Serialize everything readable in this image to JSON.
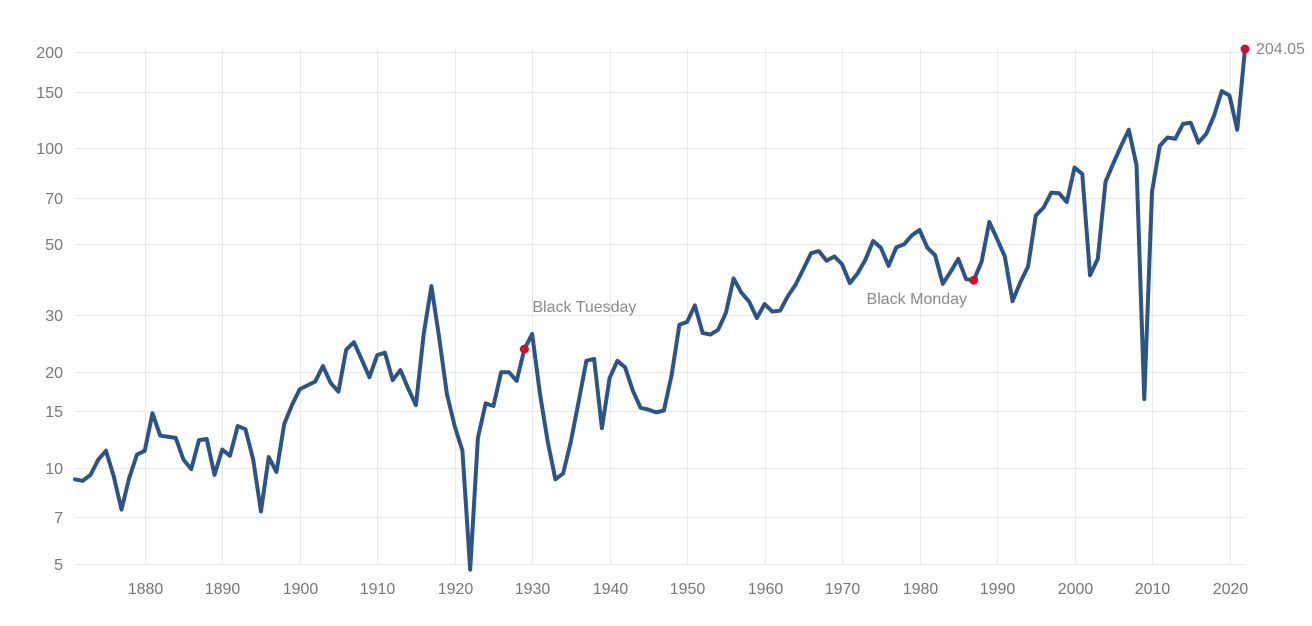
{
  "chart_data": {
    "type": "line",
    "title": "",
    "xlabel": "",
    "ylabel": "",
    "scale": "log",
    "grid": true,
    "legend": "none",
    "xlim": [
      1871,
      2022
    ],
    "ylim": [
      5,
      204.05
    ],
    "x_ticks": [
      1880,
      1890,
      1900,
      1910,
      1920,
      1930,
      1940,
      1950,
      1960,
      1970,
      1980,
      1990,
      2000,
      2010,
      2020
    ],
    "y_ticks": [
      5,
      7,
      10,
      15,
      20,
      30,
      50,
      70,
      100,
      150,
      200
    ],
    "line_color": "#2d5486",
    "marker_color": "#d20f2f",
    "series": [
      {
        "x": [
          1871,
          1872,
          1873,
          1874,
          1875,
          1876,
          1877,
          1878,
          1879,
          1880,
          1881,
          1882,
          1883,
          1884,
          1885,
          1886,
          1887,
          1888,
          1889,
          1890,
          1891,
          1892,
          1893,
          1894,
          1895,
          1896,
          1897,
          1898,
          1899,
          1900,
          1901,
          1902,
          1903,
          1904,
          1905,
          1906,
          1907,
          1908,
          1909,
          1910,
          1911,
          1912,
          1913,
          1914,
          1915,
          1916,
          1917,
          1918,
          1919,
          1920,
          1921,
          1922,
          1923,
          1924,
          1925,
          1926,
          1927,
          1928,
          1929,
          1930,
          1931,
          1932,
          1933,
          1934,
          1935,
          1936,
          1937,
          1938,
          1939,
          1940,
          1941,
          1942,
          1943,
          1944,
          1945,
          1946,
          1947,
          1948,
          1949,
          1950,
          1951,
          1952,
          1953,
          1954,
          1955,
          1956,
          1957,
          1958,
          1959,
          1960,
          1961,
          1962,
          1963,
          1964,
          1965,
          1966,
          1967,
          1968,
          1969,
          1970,
          1971,
          1972,
          1973,
          1974,
          1975,
          1976,
          1977,
          1978,
          1979,
          1980,
          1981,
          1982,
          1983,
          1984,
          1985,
          1986,
          1987,
          1988,
          1989,
          1990,
          1991,
          1992,
          1993,
          1994,
          1995,
          1996,
          1997,
          1998,
          1999,
          2000,
          2001,
          2002,
          2003,
          2004,
          2005,
          2006,
          2007,
          2008,
          2009,
          2010,
          2011,
          2012,
          2013,
          2014,
          2015,
          2016,
          2017,
          2018,
          2019,
          2020,
          2021,
          2022
        ],
        "y": [
          9.2,
          9.1,
          9.5,
          10.6,
          11.3,
          9.4,
          7.4,
          9.3,
          11.0,
          11.3,
          14.8,
          12.6,
          12.5,
          12.4,
          10.6,
          9.9,
          12.2,
          12.3,
          9.5,
          11.4,
          10.9,
          13.5,
          13.2,
          10.6,
          7.3,
          10.8,
          9.7,
          13.7,
          15.7,
          17.6,
          18.1,
          18.6,
          20.8,
          18.4,
          17.3,
          23.4,
          24.7,
          21.8,
          19.2,
          22.5,
          22.9,
          18.8,
          20.2,
          17.7,
          15.7,
          26.2,
          37.0,
          25.5,
          17.0,
          13.5,
          11.3,
          4.8,
          12.4,
          15.9,
          15.6,
          19.9,
          19.9,
          18.7,
          23.5,
          26.2,
          17.1,
          12.1,
          9.2,
          9.6,
          12.1,
          16.1,
          21.6,
          21.9,
          13.3,
          19.1,
          21.6,
          20.6,
          17.4,
          15.4,
          15.2,
          14.9,
          15.1,
          19.5,
          28.0,
          28.6,
          32.2,
          26.4,
          26.1,
          27.0,
          30.5,
          39.1,
          35.3,
          33.1,
          29.4,
          32.5,
          30.8,
          31.0,
          34.4,
          37.4,
          41.8,
          46.9,
          47.6,
          44.4,
          45.8,
          43.3,
          37.8,
          40.5,
          44.7,
          51.2,
          48.8,
          42.8,
          48.9,
          50.0,
          53.3,
          55.4,
          48.8,
          46.2,
          37.6,
          41.0,
          45.0,
          38.9,
          38.6,
          44.1,
          58.7,
          52.0,
          45.8,
          33.2,
          38.0,
          42.6,
          61.5,
          65.1,
          72.5,
          72.2,
          67.8,
          86.9,
          82.9,
          40.0,
          45.0,
          78.4,
          89.5,
          101.4,
          114.1,
          88.4,
          16.4,
          73.0,
          101.6,
          107.9,
          106.9,
          119.0,
          120.0,
          103.9,
          110.8,
          126.1,
          150.7,
          146.0,
          114.0,
          204.05
        ]
      }
    ],
    "annotations": [
      {
        "x": 1929,
        "y": 23.5,
        "label": "Black Tuesday"
      },
      {
        "x": 1987,
        "y": 38.6,
        "label": "Black Monday"
      },
      {
        "x": 2022,
        "y": 204.05,
        "label": "204.05"
      }
    ]
  }
}
